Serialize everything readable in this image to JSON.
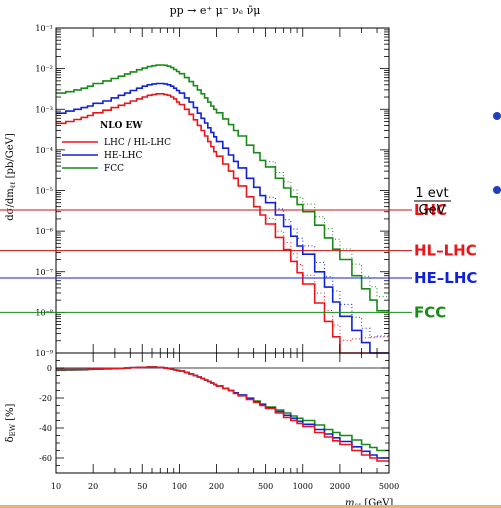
{
  "chart_data": {
    "type": "line",
    "title": "pp → e⁺ μ⁻ νₑ ν̄μ",
    "xlabel": "m_ℓℓ [GeV]",
    "xlabel_main": "m",
    "xlabel_sub": "ℓℓ",
    "xlabel_unit": " [GeV]",
    "ylabel": "dσ/dm_ℓℓ [pb/GeV]",
    "ylabel_main": "dσ/dm",
    "ylabel_sub": "ℓℓ",
    "ylabel_unit": " [pb/GeV]",
    "ratio_ylabel": "δ_EW [%]",
    "ratio_ylabel_main": "δ",
    "ratio_ylabel_sub": "EW",
    "ratio_ylabel_unit": " [%]",
    "xscale": "log",
    "yscale": "log",
    "xlim": [
      10,
      5000
    ],
    "ylim": [
      1e-09,
      0.1
    ],
    "ratio_ylim": [
      -70,
      10
    ],
    "x_ticks": [
      "10",
      "20",
      "50",
      "100",
      "200",
      "500",
      "1000",
      "2000",
      "5000"
    ],
    "y_ticks": [
      "10⁻⁹",
      "10⁻⁸",
      "10⁻⁷",
      "10⁻⁶",
      "10⁻⁵",
      "10⁻⁴",
      "10⁻³",
      "10⁻²",
      "10⁻¹"
    ],
    "ratio_y_ticks": [
      "0",
      "-20",
      "-40",
      "-60"
    ],
    "legend_title": "NLO EW",
    "legend_position": "middle-left",
    "series_colors": {
      "lhc": "#e8161b",
      "he": "#1021d8",
      "fcc": "#178a17"
    },
    "bin_edges": [
      10,
      12,
      14,
      16,
      18,
      20,
      24,
      28,
      32,
      36,
      40,
      45,
      50,
      55,
      60,
      65,
      70,
      75,
      80,
      85,
      90,
      95,
      100,
      110,
      120,
      130,
      140,
      150,
      160,
      170,
      180,
      190,
      200,
      225,
      250,
      275,
      300,
      350,
      400,
      450,
      500,
      600,
      700,
      800,
      900,
      1000,
      1250,
      1500,
      1750,
      2000,
      2500,
      3000,
      3500,
      4000,
      5000
    ],
    "series": [
      {
        "name": "LHC / HL-LHC",
        "values": [
          0.00045,
          0.0005,
          0.00056,
          0.00063,
          0.0007,
          0.00082,
          0.00095,
          0.0011,
          0.00125,
          0.0014,
          0.0016,
          0.0018,
          0.002,
          0.0022,
          0.0023,
          0.0024,
          0.0024,
          0.0023,
          0.0022,
          0.002,
          0.0018,
          0.0015,
          0.0013,
          0.001,
          0.00075,
          0.00055,
          0.0004,
          0.0003,
          0.00022,
          0.00016,
          0.00012,
          9e-05,
          7e-05,
          4.5e-05,
          3e-05,
          2e-05,
          1.3e-05,
          7e-06,
          4e-06,
          2.5e-06,
          1.5e-06,
          7e-07,
          3.5e-07,
          1.8e-07,
          9.5e-08,
          5e-08,
          1.7e-08,
          6e-09,
          2.5e-09,
          1e-09,
          1e-09,
          1e-09,
          1e-09,
          1e-09
        ]
      },
      {
        "name": "HE-LHC",
        "values": [
          0.0008,
          0.0009,
          0.001,
          0.0011,
          0.0012,
          0.0014,
          0.0016,
          0.0019,
          0.0022,
          0.0025,
          0.0029,
          0.0033,
          0.0037,
          0.004,
          0.0042,
          0.0043,
          0.0043,
          0.0042,
          0.004,
          0.0037,
          0.0033,
          0.0029,
          0.0025,
          0.0019,
          0.0015,
          0.0011,
          0.0008,
          0.0006,
          0.00046,
          0.00035,
          0.00027,
          0.00021,
          0.00016,
          0.00011,
          7.5e-05,
          5.2e-05,
          3.6e-05,
          2e-05,
          1.2e-05,
          7.5e-06,
          5e-06,
          2.5e-06,
          1.3e-06,
          7.5e-07,
          4.3e-07,
          2.7e-07,
          1e-07,
          4.2e-08,
          1.8e-08,
          8e-09,
          3.6e-09,
          1.8e-09,
          1e-09,
          1e-09
        ]
      },
      {
        "name": "FCC",
        "values": [
          0.0025,
          0.0027,
          0.003,
          0.0033,
          0.0037,
          0.0043,
          0.005,
          0.0057,
          0.0065,
          0.0074,
          0.0083,
          0.0094,
          0.0103,
          0.0112,
          0.0118,
          0.0122,
          0.0123,
          0.0121,
          0.0115,
          0.0106,
          0.0095,
          0.0085,
          0.0075,
          0.006,
          0.0048,
          0.0038,
          0.003,
          0.0024,
          0.0019,
          0.0015,
          0.0012,
          0.001,
          0.00082,
          0.00058,
          0.00042,
          0.0003,
          0.00022,
          0.00013,
          8.5e-05,
          5.5e-05,
          3.8e-05,
          2e-05,
          1.15e-05,
          7e-06,
          4.5e-06,
          3e-06,
          1.4e-06,
          6.8e-07,
          3.6e-07,
          2e-07,
          8e-08,
          3.8e-08,
          2e-08,
          1.1e-08
        ]
      }
    ],
    "dotted_lo_note": "",
    "ratio_series": [
      {
        "name": "LHC / HL-LHC",
        "values": [
          -1,
          -1,
          -1,
          -1,
          -0.8,
          -0.6,
          -0.4,
          -0.3,
          -0.2,
          0,
          0.2,
          0.4,
          0.5,
          0.6,
          0.6,
          0.5,
          0.3,
          0,
          -0.4,
          -0.8,
          -1.2,
          -1.6,
          -2,
          -3,
          -4,
          -5,
          -6,
          -7,
          -8,
          -9,
          -10,
          -11,
          -12,
          -13.5,
          -15,
          -17,
          -18.5,
          -21,
          -23,
          -25,
          -27,
          -30,
          -33,
          -35,
          -37,
          -39,
          -43,
          -46,
          -48.5,
          -51,
          -55,
          -58,
          -60,
          -62
        ]
      },
      {
        "name": "HE-LHC",
        "values": [
          -1,
          -1,
          -1,
          -1,
          -0.8,
          -0.6,
          -0.4,
          -0.3,
          -0.2,
          0,
          0.2,
          0.4,
          0.5,
          0.6,
          0.6,
          0.5,
          0.3,
          0,
          -0.4,
          -0.8,
          -1.2,
          -1.6,
          -2,
          -3,
          -4,
          -5,
          -6,
          -7,
          -8,
          -9,
          -10,
          -11,
          -12,
          -13.5,
          -15,
          -16.5,
          -18,
          -20.5,
          -22.5,
          -24.5,
          -26.5,
          -29,
          -31.5,
          -33.5,
          -35.5,
          -37.5,
          -41,
          -44,
          -46.5,
          -49,
          -52.5,
          -55.5,
          -58,
          -60
        ]
      },
      {
        "name": "FCC",
        "values": [
          -1.5,
          -1.4,
          -1.3,
          -1.2,
          -1,
          -0.8,
          -0.6,
          -0.4,
          -0.2,
          0,
          0.2,
          0.4,
          0.5,
          0.6,
          0.6,
          0.5,
          0.3,
          0,
          -0.4,
          -0.8,
          -1.2,
          -1.6,
          -2,
          -3,
          -4,
          -5,
          -6,
          -7,
          -8,
          -9,
          -10,
          -11,
          -12,
          -13.5,
          -15,
          -16.5,
          -18,
          -20,
          -22,
          -24,
          -26,
          -28,
          -30,
          -32,
          -33.5,
          -35,
          -38,
          -41,
          -43,
          -45,
          -48,
          -51,
          -53,
          -55
        ]
      }
    ]
  },
  "thresholds": {
    "unit_numerator": "1 evt",
    "unit_denominator": "GeV",
    "lines": [
      {
        "label": "LHC",
        "value": 3.3e-06,
        "color": "#cc1111",
        "label_color": "#e8161b"
      },
      {
        "label": "HL–LHC",
        "value": 3.3e-07,
        "color": "#cc1111",
        "label_color": "#e8161b"
      },
      {
        "label": "HE–LHC",
        "value": 7e-08,
        "color": "#1021d8",
        "label_color": "#1021d8"
      },
      {
        "label": "FCC",
        "value": 1e-08,
        "color": "#178a17",
        "label_color": "#178a17"
      }
    ]
  },
  "colors": {
    "bullet": "#1f3fbf",
    "rule": "#e7b07d"
  }
}
